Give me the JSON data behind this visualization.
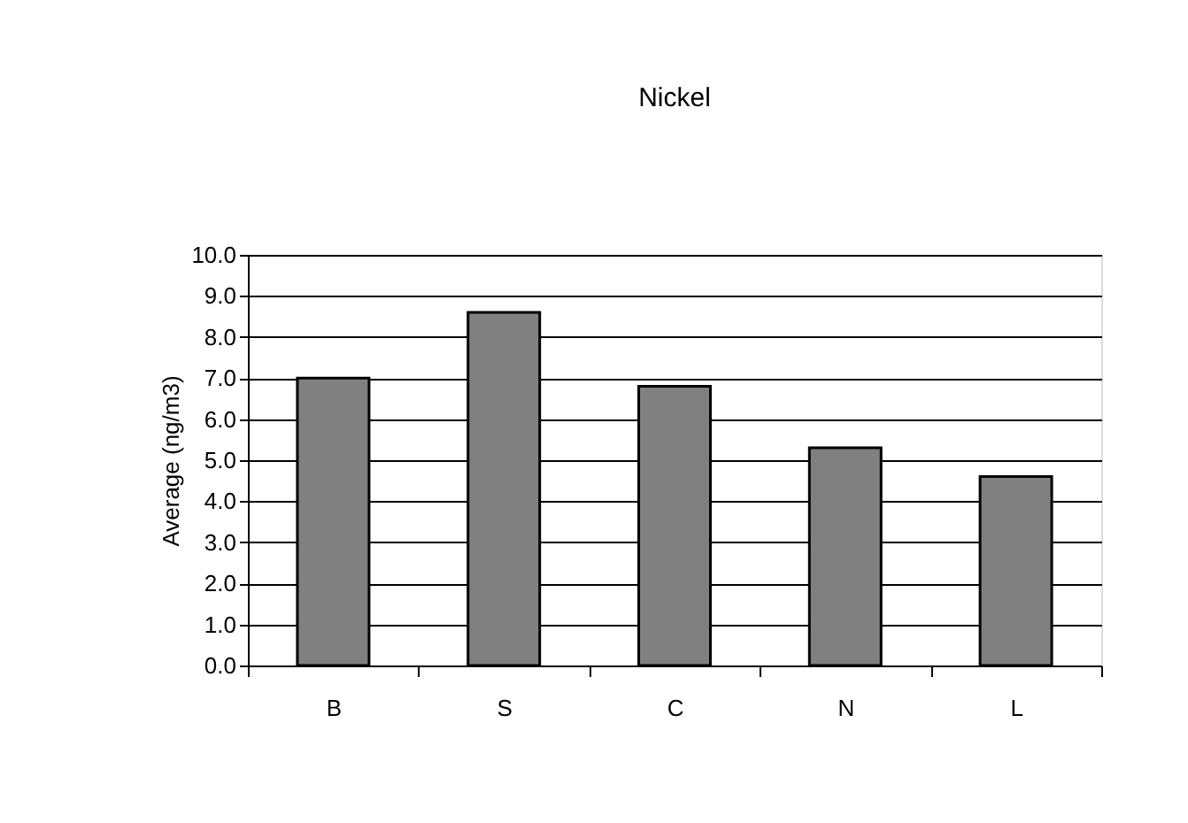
{
  "chart_data": {
    "type": "bar",
    "title": "Nickel",
    "ylabel": "Average (ng/m3)",
    "categories": [
      "B",
      "S",
      "C",
      "N",
      "L"
    ],
    "values": [
      7.0,
      8.6,
      6.8,
      5.3,
      4.6
    ],
    "color": "#808080",
    "ylim": [
      0,
      10
    ],
    "yticks": [
      {
        "value": 0,
        "label": "0.0"
      },
      {
        "value": 1,
        "label": "1.0"
      },
      {
        "value": 2,
        "label": "2.0"
      },
      {
        "value": 3,
        "label": "3.0"
      },
      {
        "value": 4,
        "label": "4.0"
      },
      {
        "value": 5,
        "label": "5.0"
      },
      {
        "value": 6,
        "label": "6.0"
      },
      {
        "value": 7,
        "label": "7.0"
      },
      {
        "value": 8,
        "label": "8.0"
      },
      {
        "value": 9,
        "label": "9.0"
      },
      {
        "value": 10,
        "label": "10.0"
      }
    ],
    "grid": "y"
  }
}
